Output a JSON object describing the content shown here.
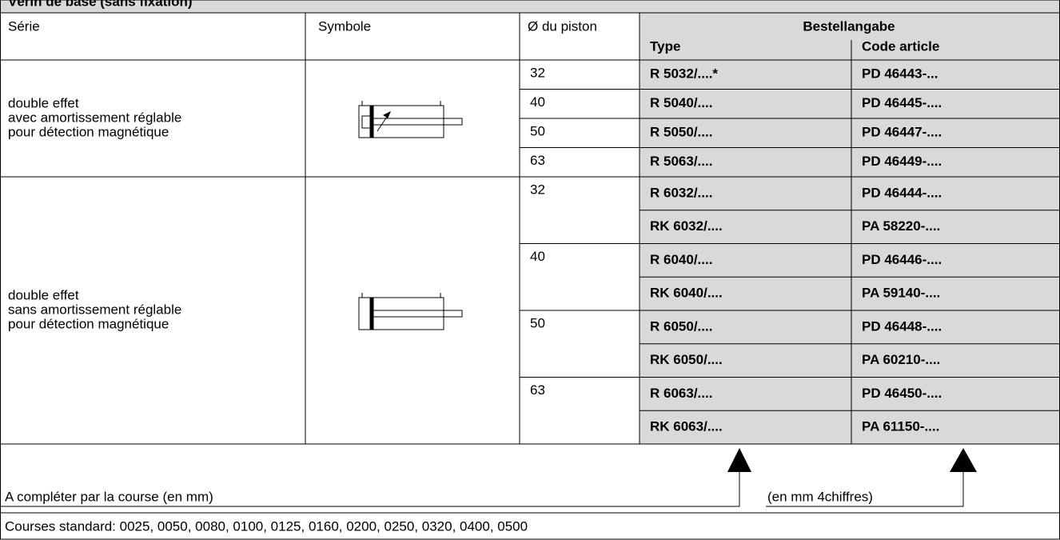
{
  "header": {
    "title": "Vérin de base (sans fixation)"
  },
  "table": {
    "headers": {
      "serie": "Série",
      "symbole": "Symbole",
      "piston": "Ø du piston",
      "order": "Bestellangabe",
      "type": "Type",
      "code": "Code article"
    },
    "groups": [
      {
        "description": [
          "double effet",
          "avec amortissement réglable",
          "pour détection magnétique"
        ],
        "pistons": [
          {
            "diameter": "32",
            "variants": [
              {
                "type": "R 5032/....*",
                "code": "PD 46443-..."
              }
            ]
          },
          {
            "diameter": "40",
            "variants": [
              {
                "type": "R 5040/....",
                "code": "PD 46445-...."
              }
            ]
          },
          {
            "diameter": "50",
            "variants": [
              {
                "type": "R 5050/....",
                "code": "PD 46447-...."
              }
            ]
          },
          {
            "diameter": "63",
            "variants": [
              {
                "type": "R 5063/....",
                "code": "PD 46449-...."
              }
            ]
          }
        ]
      },
      {
        "description": [
          "double effet",
          "sans amortissement réglable",
          "pour détection magnétique"
        ],
        "pistons": [
          {
            "diameter": "32",
            "variants": [
              {
                "type": "R 6032/....",
                "code": "PD 46444-...."
              },
              {
                "type": "RK 6032/....",
                "code": "PA 58220-...."
              }
            ]
          },
          {
            "diameter": "40",
            "variants": [
              {
                "type": "R 6040/....",
                "code": "PD 46446-...."
              },
              {
                "type": "RK 6040/....",
                "code": "PA 59140-...."
              }
            ]
          },
          {
            "diameter": "50",
            "variants": [
              {
                "type": "R 6050/....",
                "code": "PD 46448-...."
              },
              {
                "type": "RK 6050/....",
                "code": "PA 60210-...."
              }
            ]
          },
          {
            "diameter": "63",
            "variants": [
              {
                "type": "R 6063/....",
                "code": "PD 46450-...."
              },
              {
                "type": "RK 6063/....",
                "code": "PA 61150-...."
              }
            ]
          }
        ]
      }
    ]
  },
  "footer": {
    "stroke_note": "A compléter par la course (en mm)",
    "digits_note": "(en mm 4chiffres)",
    "standard": "Courses standard: 0025, 0050, 0080, 0100, 0125, 0160, 0200, 0250, 0320, 0400, 0500"
  }
}
